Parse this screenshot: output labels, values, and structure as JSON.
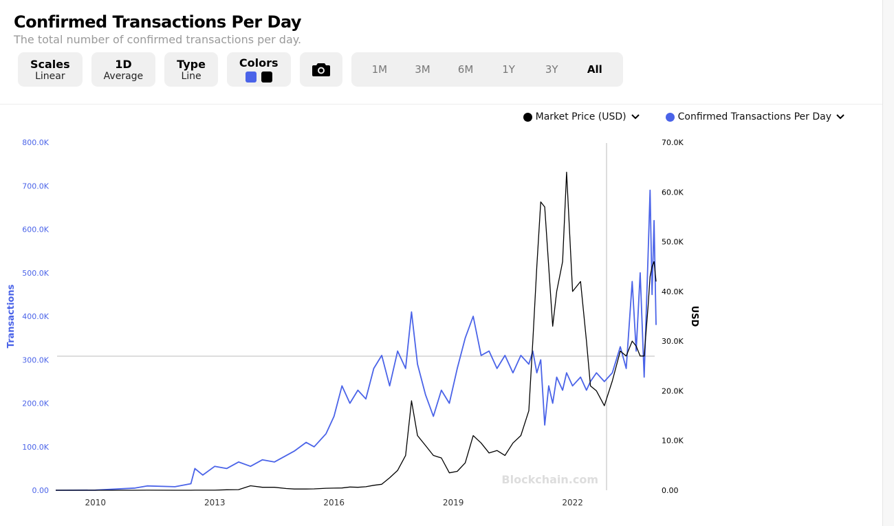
{
  "header": {
    "title": "Confirmed Transactions Per Day",
    "subtitle": "The total number of confirmed transactions per day."
  },
  "controls": {
    "scales": {
      "label": "Scales",
      "value": "Linear"
    },
    "period": {
      "label": "1D",
      "value": "Average"
    },
    "type": {
      "label": "Type",
      "value": "Line"
    },
    "colors": {
      "label": "Colors"
    },
    "ranges": [
      "1M",
      "3M",
      "6M",
      "1Y",
      "3Y",
      "All"
    ],
    "active_range": "All"
  },
  "watermark": "Blockchain.com",
  "chart_data": {
    "type": "line",
    "x": [
      2009.0,
      2010.0,
      2011.0,
      2011.3,
      2012.0,
      2012.4,
      2012.5,
      2012.7,
      2013.0,
      2013.3,
      2013.6,
      2013.9,
      2014.2,
      2014.5,
      2014.8,
      2015.0,
      2015.3,
      2015.5,
      2015.8,
      2016.0,
      2016.2,
      2016.4,
      2016.6,
      2016.8,
      2017.0,
      2017.2,
      2017.4,
      2017.6,
      2017.8,
      2017.95,
      2018.1,
      2018.3,
      2018.5,
      2018.7,
      2018.9,
      2019.1,
      2019.3,
      2019.5,
      2019.7,
      2019.9,
      2020.1,
      2020.3,
      2020.5,
      2020.7,
      2020.9,
      2021.0,
      2021.1,
      2021.2,
      2021.3,
      2021.4,
      2021.5,
      2021.6,
      2021.75,
      2021.85,
      2022.0,
      2022.2,
      2022.35,
      2022.45,
      2022.6,
      2022.8,
      2023.0,
      2023.2,
      2023.35,
      2023.5,
      2023.6,
      2023.7,
      2023.8,
      2023.9,
      2023.95,
      2024.0,
      2024.05,
      2024.1
    ],
    "xlim": [
      2009,
      2024.1
    ],
    "xticks": [
      2010,
      2013,
      2016,
      2019,
      2022
    ],
    "ylabel": "Transactions",
    "y2label": "USD",
    "ylim": [
      0,
      800000
    ],
    "yticks": [
      {
        "value": 0,
        "label": "0.00"
      },
      {
        "value": 100000,
        "label": "100.0K"
      },
      {
        "value": 200000,
        "label": "200.0K"
      },
      {
        "value": 300000,
        "label": "300.0K"
      },
      {
        "value": 400000,
        "label": "400.0K"
      },
      {
        "value": 500000,
        "label": "500.0K"
      },
      {
        "value": 600000,
        "label": "600.0K"
      },
      {
        "value": 700000,
        "label": "700.0K"
      },
      {
        "value": 800000,
        "label": "800.0K"
      }
    ],
    "y2lim": [
      0,
      70000
    ],
    "y2ticks": [
      {
        "value": 0,
        "label": "0.00"
      },
      {
        "value": 10000,
        "label": "10.0K"
      },
      {
        "value": 20000,
        "label": "20.0K"
      },
      {
        "value": 30000,
        "label": "30.0K"
      },
      {
        "value": 40000,
        "label": "40.0K"
      },
      {
        "value": 50000,
        "label": "50.0K"
      },
      {
        "value": 60000,
        "label": "60.0K"
      },
      {
        "value": 70000,
        "label": "70.0K"
      }
    ],
    "series": [
      {
        "name": "Confirmed Transactions Per Day",
        "color": "#4a63e8",
        "axis": "y",
        "values": [
          0,
          300,
          5000,
          10000,
          8000,
          15000,
          50000,
          35000,
          55000,
          50000,
          65000,
          55000,
          70000,
          65000,
          80000,
          90000,
          110000,
          100000,
          130000,
          170000,
          240000,
          200000,
          230000,
          210000,
          280000,
          310000,
          240000,
          320000,
          280000,
          410000,
          290000,
          220000,
          170000,
          230000,
          200000,
          280000,
          350000,
          400000,
          310000,
          320000,
          280000,
          310000,
          270000,
          310000,
          290000,
          320000,
          270000,
          300000,
          150000,
          240000,
          200000,
          260000,
          230000,
          270000,
          240000,
          260000,
          230000,
          250000,
          270000,
          250000,
          270000,
          330000,
          280000,
          480000,
          320000,
          500000,
          260000,
          540000,
          690000,
          450000,
          620000,
          380000
        ]
      },
      {
        "name": "Market Price (USD)",
        "color": "#000000",
        "axis": "y2",
        "values": [
          0,
          0.1,
          0.3,
          15,
          5,
          5,
          10,
          10,
          13,
          100,
          130,
          900,
          600,
          600,
          350,
          250,
          250,
          280,
          400,
          430,
          450,
          650,
          600,
          700,
          1000,
          1200,
          2500,
          4000,
          7000,
          18000,
          11000,
          9000,
          7000,
          6500,
          3500,
          3800,
          5500,
          11000,
          9500,
          7500,
          8000,
          7000,
          9500,
          11000,
          16000,
          30000,
          45000,
          58000,
          57000,
          45000,
          33000,
          40000,
          46000,
          64000,
          40000,
          42000,
          30000,
          21000,
          20000,
          17000,
          22000,
          28000,
          27000,
          30000,
          29000,
          27000,
          27000,
          37000,
          43000,
          45000,
          46000,
          42000
        ]
      }
    ]
  }
}
